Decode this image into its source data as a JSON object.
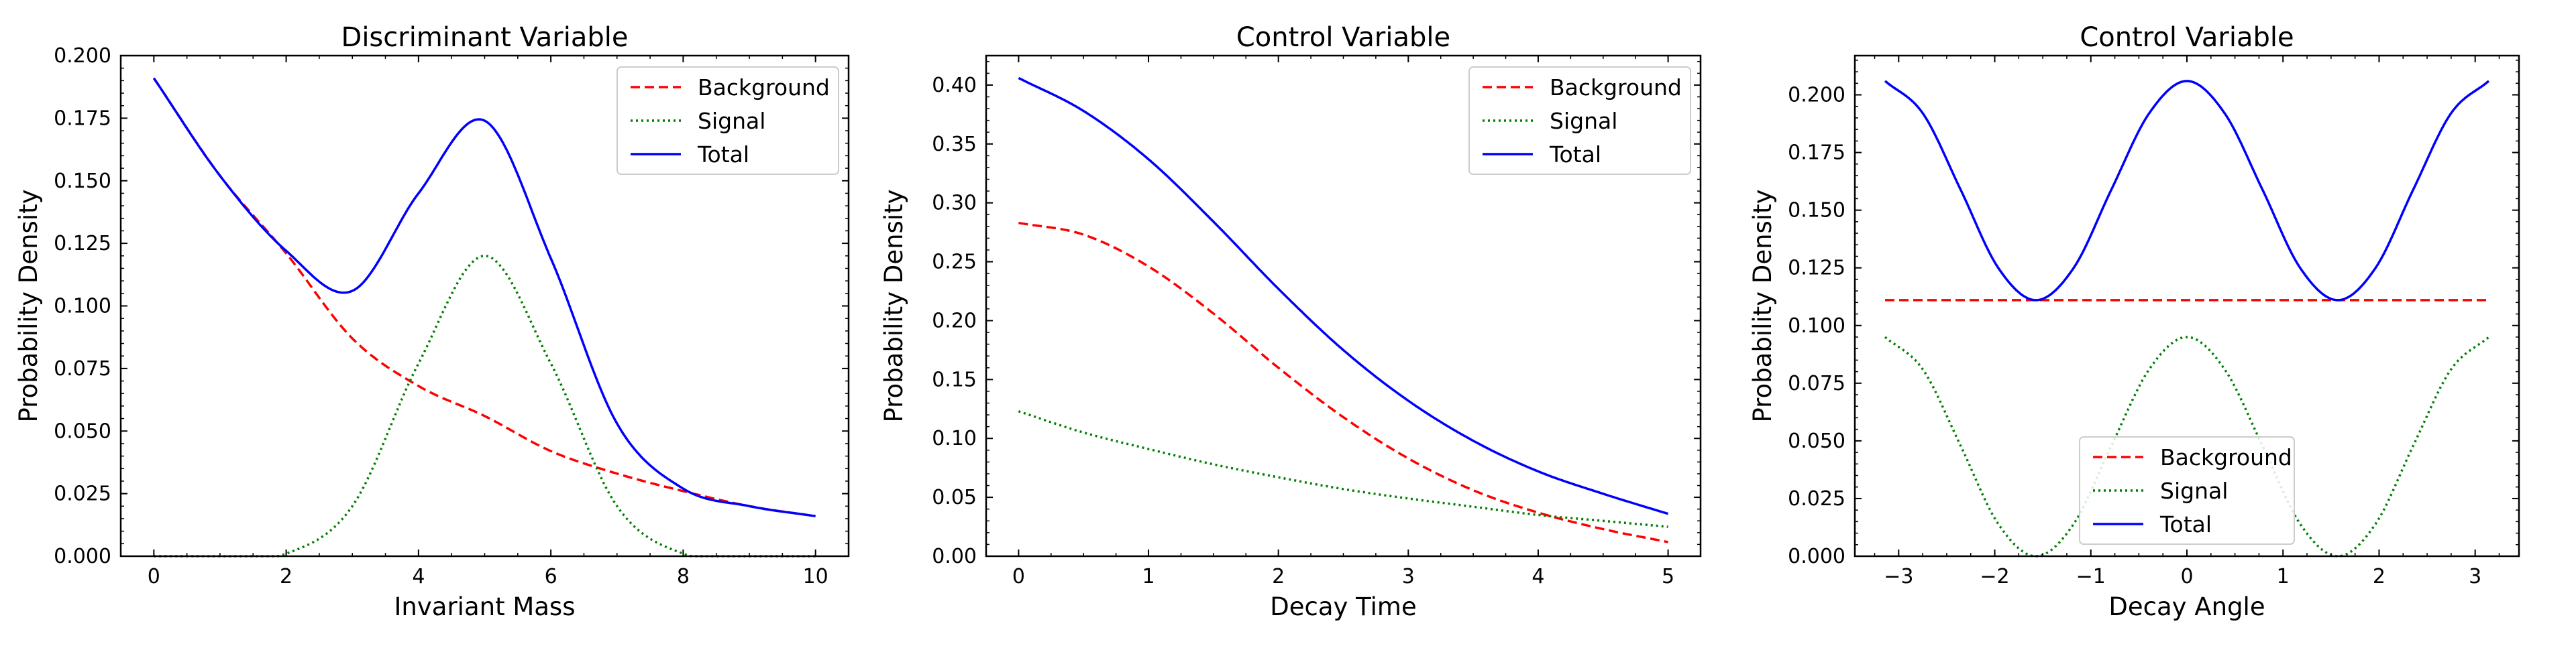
{
  "chart_data": [
    {
      "type": "line",
      "title": "Discriminant Variable",
      "xlabel": "Invariant Mass",
      "ylabel": "Probability Density",
      "xlim": [
        -0.5,
        10.5
      ],
      "ylim": [
        0,
        0.2
      ],
      "xticks": [
        0,
        2,
        4,
        6,
        8,
        10
      ],
      "xtick_labels": [
        "0",
        "2",
        "4",
        "6",
        "8",
        "10"
      ],
      "yticks": [
        0,
        0.025,
        0.05,
        0.075,
        0.1,
        0.125,
        0.15,
        0.175,
        0.2
      ],
      "ytick_labels": [
        "0.000",
        "0.025",
        "0.050",
        "0.075",
        "0.100",
        "0.125",
        "0.150",
        "0.175",
        "0.200"
      ],
      "legend_position": "top-right",
      "grid": false,
      "x": [
        0,
        1,
        2,
        3,
        4,
        5,
        6,
        7,
        8,
        9,
        10
      ],
      "series": [
        {
          "name": "Background",
          "color": "#ff0000",
          "style": "dashed",
          "values": [
            0.191,
            0.152,
            0.121,
            0.087,
            0.068,
            0.056,
            0.042,
            0.033,
            0.026,
            0.02,
            0.016
          ]
        },
        {
          "name": "Signal",
          "color": "#008000",
          "style": "dotted",
          "values": [
            0.0,
            0.0,
            0.001,
            0.02,
            0.077,
            0.12,
            0.077,
            0.02,
            0.001,
            0.0,
            0.0
          ]
        },
        {
          "name": "Total",
          "color": "#0000ff",
          "style": "solid",
          "values": [
            0.191,
            0.152,
            0.122,
            0.106,
            0.145,
            0.174,
            0.119,
            0.053,
            0.027,
            0.02,
            0.016
          ]
        }
      ]
    },
    {
      "type": "line",
      "title": "Control Variable",
      "xlabel": "Decay Time",
      "ylabel": "Probability Density",
      "xlim": [
        -0.25,
        5.25
      ],
      "ylim": [
        0,
        0.425
      ],
      "xticks": [
        0,
        1,
        2,
        3,
        4,
        5
      ],
      "xtick_labels": [
        "0",
        "1",
        "2",
        "3",
        "4",
        "5"
      ],
      "yticks": [
        0,
        0.05,
        0.1,
        0.15,
        0.2,
        0.25,
        0.3,
        0.35,
        0.4
      ],
      "ytick_labels": [
        "0.00",
        "0.05",
        "0.10",
        "0.15",
        "0.20",
        "0.25",
        "0.30",
        "0.35",
        "0.40"
      ],
      "legend_position": "top-right",
      "grid": false,
      "x": [
        0,
        0.5,
        1,
        1.5,
        2,
        2.5,
        3,
        3.5,
        4,
        4.5,
        5
      ],
      "series": [
        {
          "name": "Background",
          "color": "#ff0000",
          "style": "dashed",
          "values": [
            0.283,
            0.273,
            0.246,
            0.206,
            0.16,
            0.118,
            0.083,
            0.056,
            0.037,
            0.023,
            0.012
          ]
        },
        {
          "name": "Signal",
          "color": "#008000",
          "style": "dotted",
          "values": [
            0.123,
            0.105,
            0.091,
            0.078,
            0.067,
            0.057,
            0.049,
            0.042,
            0.035,
            0.03,
            0.025
          ]
        },
        {
          "name": "Total",
          "color": "#0000ff",
          "style": "solid",
          "values": [
            0.406,
            0.378,
            0.337,
            0.284,
            0.227,
            0.175,
            0.132,
            0.098,
            0.072,
            0.053,
            0.036
          ]
        }
      ]
    },
    {
      "type": "line",
      "title": "Control Variable",
      "xlabel": "Decay Angle",
      "ylabel": "Probability Density",
      "xlim": [
        -3.456,
        3.456
      ],
      "ylim": [
        0,
        0.217
      ],
      "xticks": [
        -3,
        -2,
        -1,
        0,
        1,
        2,
        3
      ],
      "xtick_labels": [
        "−3",
        "−2",
        "−1",
        "0",
        "1",
        "2",
        "3"
      ],
      "yticks": [
        0,
        0.025,
        0.05,
        0.075,
        0.1,
        0.125,
        0.15,
        0.175,
        0.2
      ],
      "ytick_labels": [
        "0.000",
        "0.025",
        "0.050",
        "0.075",
        "0.100",
        "0.125",
        "0.150",
        "0.175",
        "0.200"
      ],
      "legend_position": "bottom-center",
      "grid": false,
      "x": [
        -3.1416,
        -2.7489,
        -2.3562,
        -1.9635,
        -1.5708,
        -1.1781,
        -0.7854,
        -0.3927,
        0,
        0.3927,
        0.7854,
        1.1781,
        1.5708,
        1.9635,
        2.3562,
        2.7489,
        3.1416
      ],
      "series": [
        {
          "name": "Background",
          "color": "#ff0000",
          "style": "dashed",
          "values": [
            0.111,
            0.111,
            0.111,
            0.111,
            0.111,
            0.111,
            0.111,
            0.111,
            0.111,
            0.111,
            0.111,
            0.111,
            0.111,
            0.111,
            0.111,
            0.111,
            0.111
          ]
        },
        {
          "name": "Signal",
          "color": "#008000",
          "style": "dotted",
          "values": [
            0.095,
            0.081,
            0.048,
            0.014,
            0.0,
            0.014,
            0.048,
            0.081,
            0.095,
            0.081,
            0.048,
            0.014,
            0.0,
            0.014,
            0.048,
            0.081,
            0.095
          ]
        },
        {
          "name": "Total",
          "color": "#0000ff",
          "style": "solid",
          "values": [
            0.206,
            0.192,
            0.159,
            0.125,
            0.111,
            0.125,
            0.159,
            0.192,
            0.206,
            0.192,
            0.159,
            0.125,
            0.111,
            0.125,
            0.159,
            0.192,
            0.206
          ]
        }
      ]
    }
  ]
}
